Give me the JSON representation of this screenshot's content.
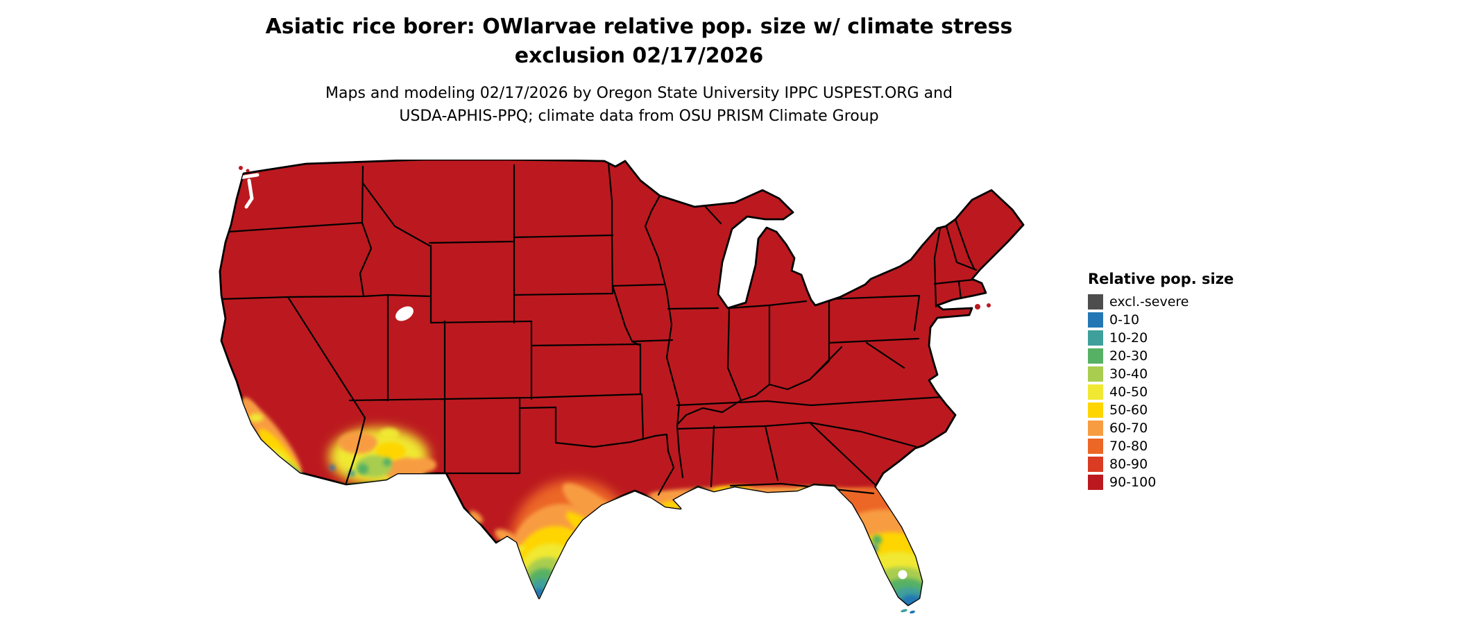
{
  "header": {
    "title_line1": "Asiatic rice borer: OWlarvae relative pop. size w/ climate stress",
    "title_line2": "exclusion 02/17/2026",
    "subtitle_line1": "Maps and modeling 02/17/2026 by Oregon State University IPPC USPEST.ORG and",
    "subtitle_line2": "USDA-APHIS-PPQ; climate data from OSU PRISM Climate Group"
  },
  "legend": {
    "title": "Relative pop. size",
    "items": [
      {
        "label": "excl.-severe",
        "color": "#4d4d4d"
      },
      {
        "label": "0-10",
        "color": "#2477b4"
      },
      {
        "label": "10-20",
        "color": "#3fa09b"
      },
      {
        "label": "20-30",
        "color": "#57b165"
      },
      {
        "label": "30-40",
        "color": "#a9cd4f"
      },
      {
        "label": "40-50",
        "color": "#f0e833"
      },
      {
        "label": "50-60",
        "color": "#fed501"
      },
      {
        "label": "60-70",
        "color": "#f89c42"
      },
      {
        "label": "70-80",
        "color": "#ec6625"
      },
      {
        "label": "80-90",
        "color": "#da3b23"
      },
      {
        "label": "90-100",
        "color": "#bb191f"
      }
    ]
  },
  "map_data": {
    "type": "choropleth",
    "region": "Continental United States",
    "water_color": "#ffffff",
    "border_color": "#000000",
    "dominant_class": "90-100",
    "low_value_regions": [
      "southern Texas coast (graded 70-80 down to 0-10 at the tip)",
      "Florida peninsula (graded 70-80 down to 0-10 at the southern tip)",
      "southern California coast (mixed 20-30 to 70-80 patches)",
      "southwestern Arizona / southeastern California deserts (mottled 10-20 to 70-80)",
      "Gulf of Mexico coastal fringe (60-70 with 40-60 patches)"
    ]
  }
}
